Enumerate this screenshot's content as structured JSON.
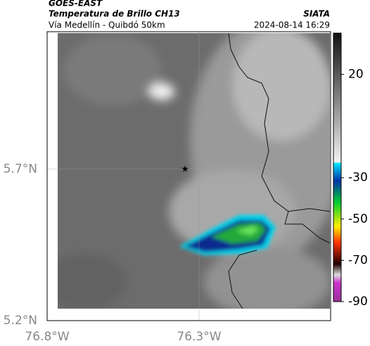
{
  "header": {
    "title": "GOES-EAST",
    "subtitle": "Temperatura de Brillo CH13",
    "source": "SIATA",
    "region": "Vía Medellín - Quibdó 50km",
    "datetime": "2024-08-14 16:29"
  },
  "map": {
    "xlim": [
      -76.8,
      -75.867
    ],
    "ylim": [
      5.2,
      6.153
    ],
    "xticks": [
      {
        "value": -76.8,
        "label": "76.8°W"
      },
      {
        "value": -76.3,
        "label": "76.3°W"
      }
    ],
    "yticks": [
      {
        "value": 5.2,
        "label": "5.2°N"
      },
      {
        "value": 5.7,
        "label": "5.7°N"
      }
    ],
    "station": {
      "lon": -76.346,
      "lat": 5.7
    }
  },
  "colorbar": {
    "lim": [
      -90,
      40
    ],
    "ticks": [
      20,
      -30,
      -50,
      -70,
      -90
    ]
  }
}
